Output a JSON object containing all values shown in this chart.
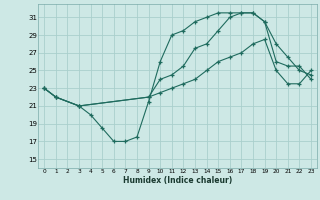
{
  "xlabel": "Humidex (Indice chaleur)",
  "bg_color": "#cde8e5",
  "grid_color": "#aacfcc",
  "line_color": "#1f6b5e",
  "xlim": [
    -0.5,
    23.5
  ],
  "ylim": [
    14.0,
    32.5
  ],
  "yticks": [
    15,
    17,
    19,
    21,
    23,
    25,
    27,
    29,
    31
  ],
  "xticks": [
    0,
    1,
    2,
    3,
    4,
    5,
    6,
    7,
    8,
    9,
    10,
    11,
    12,
    13,
    14,
    15,
    16,
    17,
    18,
    19,
    20,
    21,
    22,
    23
  ],
  "line1_x": [
    0,
    1,
    3,
    4,
    5,
    6,
    7,
    8,
    9,
    10,
    11,
    12,
    13,
    14,
    15,
    16,
    17,
    18,
    19,
    20,
    21,
    22,
    23
  ],
  "line1_y": [
    23.0,
    22.0,
    21.0,
    20.0,
    18.5,
    17.0,
    17.0,
    17.5,
    21.5,
    26.0,
    29.0,
    29.5,
    30.5,
    31.0,
    31.5,
    31.5,
    31.5,
    31.5,
    30.5,
    26.0,
    25.5,
    25.5,
    24.0
  ],
  "line2_x": [
    0,
    1,
    3,
    9,
    10,
    11,
    12,
    13,
    14,
    15,
    16,
    17,
    18,
    19,
    20,
    21,
    22,
    23
  ],
  "line2_y": [
    23.0,
    22.0,
    21.0,
    22.0,
    24.0,
    24.5,
    25.5,
    27.5,
    28.0,
    29.5,
    31.0,
    31.5,
    31.5,
    30.5,
    28.0,
    26.5,
    25.0,
    24.5
  ],
  "line3_x": [
    0,
    1,
    3,
    9,
    10,
    11,
    12,
    13,
    14,
    15,
    16,
    17,
    18,
    19,
    20,
    21,
    22,
    23
  ],
  "line3_y": [
    23.0,
    22.0,
    21.0,
    22.0,
    22.5,
    23.0,
    23.5,
    24.0,
    25.0,
    26.0,
    26.5,
    27.0,
    28.0,
    28.5,
    25.0,
    23.5,
    23.5,
    25.0
  ]
}
